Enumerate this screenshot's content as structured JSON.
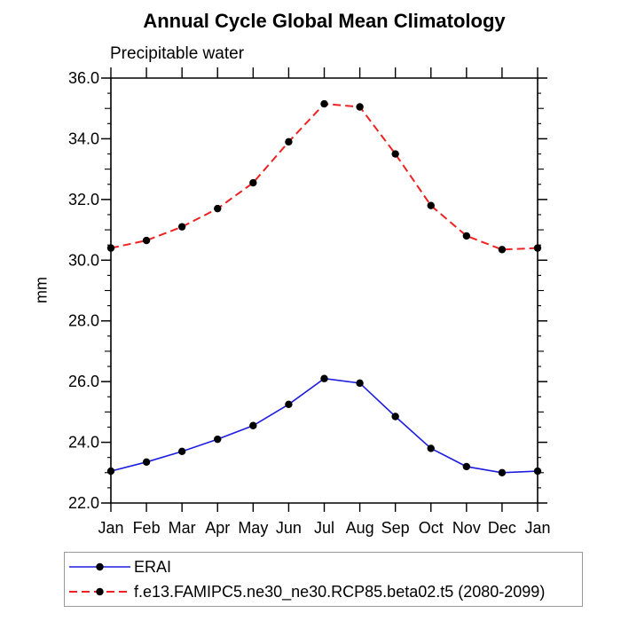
{
  "title": "Annual Cycle Global Mean Climatology",
  "subtitle": "Precipitable water",
  "ylabel": "mm",
  "legend": {
    "items": [
      {
        "label": "ERAI",
        "color": "#1d1de0",
        "dash": "solid"
      },
      {
        "label": "f.e13.FAMIPC5.ne30_ne30.RCP85.beta02.t5 (2080-2099)",
        "color": "#ee2222",
        "dash": "dashed"
      }
    ]
  },
  "chart_data": {
    "type": "line",
    "title": "Annual Cycle Global Mean Climatology",
    "subtitle": "Precipitable water",
    "xlabel": "",
    "ylabel": "mm",
    "x": [
      "Jan",
      "Feb",
      "Mar",
      "Apr",
      "May",
      "Jun",
      "Jul",
      "Aug",
      "Sep",
      "Oct",
      "Nov",
      "Dec",
      "Jan"
    ],
    "series": [
      {
        "name": "ERAI",
        "color": "#1d1de0",
        "line_style": "solid",
        "marker": "circle",
        "marker_color": "#000000",
        "values": [
          23.05,
          23.35,
          23.7,
          24.1,
          24.55,
          25.25,
          26.1,
          25.95,
          24.85,
          23.8,
          23.2,
          23.0,
          23.05
        ]
      },
      {
        "name": "f.e13.FAMIPC5.ne30_ne30.RCP85.beta02.t5 (2080-2099)",
        "color": "#ee2222",
        "line_style": "dashed",
        "marker": "circle",
        "marker_color": "#000000",
        "values": [
          30.4,
          30.65,
          31.1,
          31.7,
          32.55,
          33.9,
          35.15,
          35.05,
          33.5,
          31.8,
          30.8,
          30.35,
          30.4
        ]
      }
    ],
    "ylim": [
      22.0,
      36.0
    ],
    "ytick_major": 2.0,
    "ytick_mid": 1.0,
    "ytick_minor": 0.5,
    "ytick_labels": [
      "22.0",
      "24.0",
      "26.0",
      "28.0",
      "30.0",
      "32.0",
      "34.0",
      "36.0"
    ],
    "grid": false,
    "legend_position": "bottom",
    "axis_color": "#000000"
  }
}
